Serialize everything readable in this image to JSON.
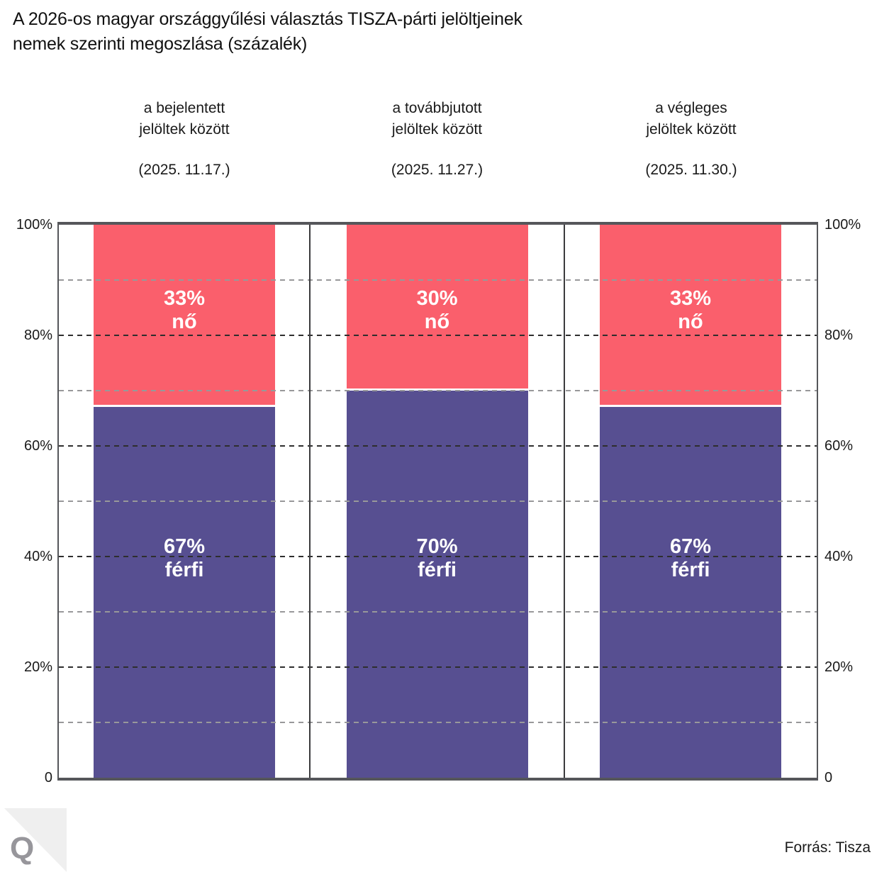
{
  "title": "A 2026-os magyar országgyűlési választás TISZA-párti jelöltjeinek\nnemek szerinti megoszlása (százalék)",
  "source": "Forrás: Tisza",
  "logo": {
    "letter": "Q"
  },
  "colors": {
    "female": "#FA5F6C",
    "male": "#574F91",
    "frame": "#55565A",
    "grid_dark": "#2E2E2E",
    "grid_light": "#98989A",
    "logo_fold": "#EFEFEF",
    "logo_letter": "#97969B"
  },
  "chart_data": {
    "type": "bar",
    "subtype": "stacked-100-percent",
    "title": "A 2026-os magyar országgyűlési választás TISZA-párti jelöltjeinek nemek szerinti megoszlása (százalék)",
    "categories": [
      "a bejelentett\njelöltek között",
      "a továbbjutott\njelöltek között",
      "a végleges\njelöltek között"
    ],
    "category_dates": [
      "(2025. 11.17.)",
      "(2025. 11.27.)",
      "(2025. 11.30.)"
    ],
    "series": [
      {
        "name": "nő",
        "color": "#FA5F6C",
        "values": [
          33,
          30,
          33
        ]
      },
      {
        "name": "férfi",
        "color": "#574F91",
        "values": [
          67,
          70,
          67
        ]
      }
    ],
    "ylim": [
      0,
      100
    ],
    "yticks": [
      {
        "value": 0,
        "label": "0"
      },
      {
        "value": 20,
        "label": "20%"
      },
      {
        "value": 40,
        "label": "40%"
      },
      {
        "value": 60,
        "label": "60%"
      },
      {
        "value": 80,
        "label": "80%"
      },
      {
        "value": 100,
        "label": "100%"
      }
    ],
    "gridlines_every": 10,
    "grid_style": "dashed",
    "axis_sides": [
      "left",
      "right"
    ],
    "legend": "labels-on-bars"
  }
}
